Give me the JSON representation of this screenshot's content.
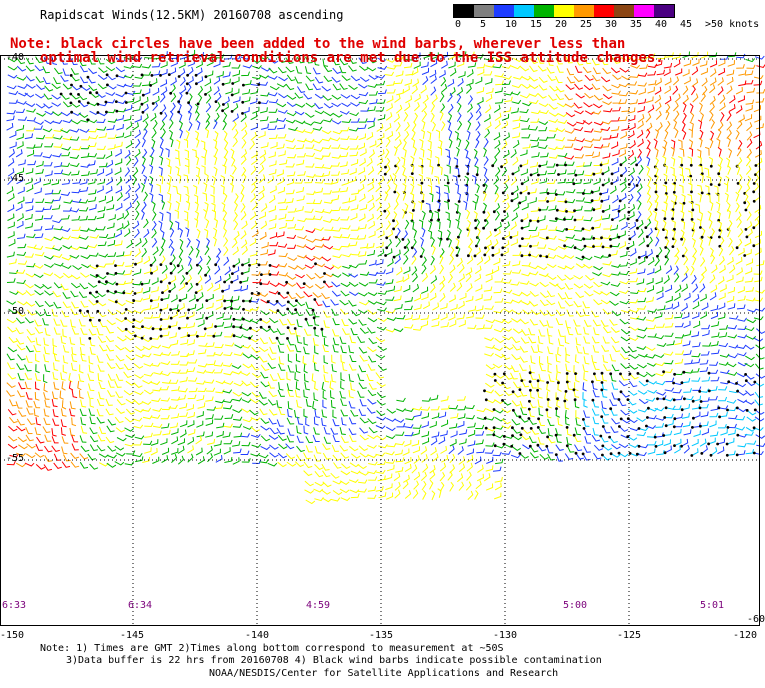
{
  "title": "Rapidscat Winds(12.5KM) 20160708 ascending",
  "note_lines": [
    "Note: black circles have been added to the wind barbs, wherever less than",
    "optimal wind retrieval conditions are met due to the ISS attitude changes."
  ],
  "color_scale": {
    "labels": [
      "0",
      "5",
      "10",
      "15",
      "20",
      "25",
      "30",
      "35",
      "40",
      "45",
      ">50 knots"
    ],
    "colors": [
      "#000000",
      "#7f7f7f",
      "#1e3cff",
      "#00c8ff",
      "#00b400",
      "#ffff00",
      "#ff9900",
      "#ff0000",
      "#8b4513",
      "#ff00ff",
      "#4b0082"
    ]
  },
  "lat_labels": [
    "-40",
    "-45",
    "-50",
    "-55",
    "-60"
  ],
  "lon_labels": [
    "-150",
    "-145",
    "-140",
    "-135",
    "-130",
    "-125",
    "-120"
  ],
  "time_labels": [
    "6:33",
    "6:34",
    "4:59",
    "5:00",
    "5:01"
  ],
  "footnotes": [
    "Note: 1) Times are GMT 2)Times along bottom correspond to measurement at ~50S",
    "3)Data buffer is 22 hrs from 20160708 4) Black wind barbs indicate possible contamination",
    "NOAA/NESDIS/Center for Satellite Applications and Research"
  ]
}
